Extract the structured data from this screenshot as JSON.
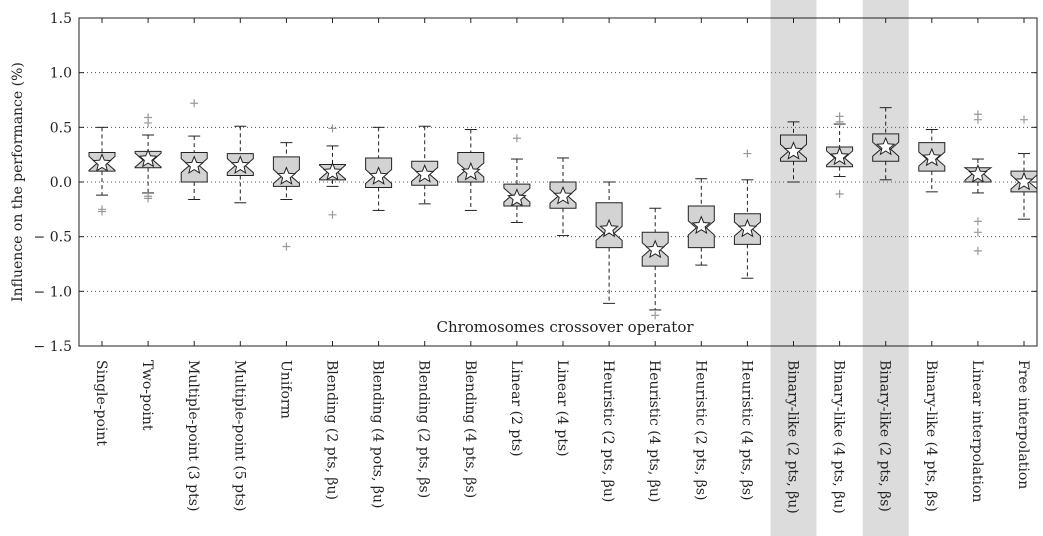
{
  "chart_data": {
    "type": "boxplot",
    "title": "",
    "ylabel": "Influence on the performance (%)",
    "annotation": "Chromosomes crossover operator",
    "ylim": [
      -1.5,
      1.5
    ],
    "yticks": [
      1.5,
      1.0,
      0.5,
      0.0,
      -0.5,
      -1.0,
      -1.5
    ],
    "ytick_labels": [
      "1.5",
      "1.0",
      "0.5",
      "0.0",
      "− 0.5",
      "− 1.0",
      "− 1.5"
    ],
    "grid": "dotted horizontal at ±0.5 and ±1.0",
    "highlighted_categories": [
      "Binary-like (2 pts, βu)",
      "Binary-like (2 pts, βs)"
    ],
    "colors": {
      "box": "#d3d3d3",
      "highlight": "#dcdcdc",
      "outlier": "#999999",
      "line": "#222222"
    },
    "categories": [
      "Single-point",
      "Two-point",
      "Multiple-point (3 pts)",
      "Multiple-point (5 pts)",
      "Uniform",
      "Blending (2 pts, βu)",
      "Blending (4 pots, βu)",
      "Blending (2 pts, βs)",
      "Blending (4 pts, βs)",
      "Linear (2 pts)",
      "Linear (4 pts)",
      "Heuristic (2 pts, βu)",
      "Heuristic (4 pts, βu)",
      "Heuristic (2 pts, βs)",
      "Heuristic (4 pts, βs)",
      "Binary-like (2 pts, βu)",
      "Binary-like (4 pts, βu)",
      "Binary-like (2 pts, βs)",
      "Binary-like (4 pts, βs)",
      "Linear interpolation",
      "Free interpolation"
    ],
    "boxes": [
      {
        "whisker_low": -0.12,
        "q1": 0.1,
        "median": 0.17,
        "q3": 0.27,
        "whisker_high": 0.5,
        "mean": 0.17,
        "outliers": [
          -0.25,
          -0.27
        ]
      },
      {
        "whisker_low": -0.1,
        "q1": 0.13,
        "median": 0.2,
        "q3": 0.28,
        "whisker_high": 0.43,
        "mean": 0.21,
        "outliers": [
          0.59,
          0.54,
          -0.13,
          -0.15
        ]
      },
      {
        "whisker_low": -0.16,
        "q1": 0.0,
        "median": 0.15,
        "q3": 0.27,
        "whisker_high": 0.42,
        "mean": 0.15,
        "outliers": [
          0.72
        ]
      },
      {
        "whisker_low": -0.19,
        "q1": 0.06,
        "median": 0.15,
        "q3": 0.26,
        "whisker_high": 0.51,
        "mean": 0.15,
        "outliers": []
      },
      {
        "whisker_low": -0.16,
        "q1": -0.04,
        "median": 0.05,
        "q3": 0.23,
        "whisker_high": 0.36,
        "mean": 0.05,
        "outliers": [
          -0.59
        ]
      },
      {
        "whisker_low": -0.04,
        "q1": 0.02,
        "median": 0.09,
        "q3": 0.16,
        "whisker_high": 0.33,
        "mean": 0.09,
        "outliers": [
          0.49,
          -0.3
        ]
      },
      {
        "whisker_low": -0.26,
        "q1": -0.05,
        "median": 0.05,
        "q3": 0.22,
        "whisker_high": 0.5,
        "mean": 0.05,
        "outliers": []
      },
      {
        "whisker_low": -0.2,
        "q1": -0.03,
        "median": 0.07,
        "q3": 0.19,
        "whisker_high": 0.51,
        "mean": 0.07,
        "outliers": []
      },
      {
        "whisker_low": -0.26,
        "q1": 0.0,
        "median": 0.11,
        "q3": 0.27,
        "whisker_high": 0.48,
        "mean": 0.09,
        "outliers": []
      },
      {
        "whisker_low": -0.37,
        "q1": -0.22,
        "median": -0.12,
        "q3": -0.02,
        "whisker_high": 0.21,
        "mean": -0.15,
        "outliers": [
          0.4
        ]
      },
      {
        "whisker_low": -0.49,
        "q1": -0.24,
        "median": -0.13,
        "q3": 0.0,
        "whisker_high": 0.22,
        "mean": -0.13,
        "outliers": []
      },
      {
        "whisker_low": -1.11,
        "q1": -0.6,
        "median": -0.47,
        "q3": -0.19,
        "whisker_high": 0.0,
        "mean": -0.43,
        "outliers": []
      },
      {
        "whisker_low": -1.17,
        "q1": -0.77,
        "median": -0.62,
        "q3": -0.46,
        "whisker_high": -0.24,
        "mean": -0.62,
        "outliers": [
          -1.22
        ]
      },
      {
        "whisker_low": -0.76,
        "q1": -0.6,
        "median": -0.42,
        "q3": -0.22,
        "whisker_high": 0.03,
        "mean": -0.4,
        "outliers": []
      },
      {
        "whisker_low": -0.88,
        "q1": -0.57,
        "median": -0.43,
        "q3": -0.29,
        "whisker_high": 0.02,
        "mean": -0.43,
        "outliers": [
          0.26
        ]
      },
      {
        "whisker_low": 0.0,
        "q1": 0.19,
        "median": 0.28,
        "q3": 0.43,
        "whisker_high": 0.55,
        "mean": 0.28,
        "outliers": []
      },
      {
        "whisker_low": 0.05,
        "q1": 0.14,
        "median": 0.22,
        "q3": 0.32,
        "whisker_high": 0.53,
        "mean": 0.23,
        "outliers": [
          0.6,
          0.55,
          -0.11
        ]
      },
      {
        "whisker_low": 0.02,
        "q1": 0.19,
        "median": 0.3,
        "q3": 0.44,
        "whisker_high": 0.68,
        "mean": 0.32,
        "outliers": []
      },
      {
        "whisker_low": -0.09,
        "q1": 0.1,
        "median": 0.21,
        "q3": 0.36,
        "whisker_high": 0.48,
        "mean": 0.22,
        "outliers": []
      },
      {
        "whisker_low": -0.1,
        "q1": 0.0,
        "median": 0.08,
        "q3": 0.13,
        "whisker_high": 0.21,
        "mean": 0.07,
        "outliers": [
          0.62,
          0.57,
          -0.36,
          -0.46,
          -0.63
        ]
      },
      {
        "whisker_low": -0.34,
        "q1": -0.09,
        "median": 0.0,
        "q3": 0.1,
        "whisker_high": 0.26,
        "mean": 0.0,
        "outliers": [
          0.57
        ]
      }
    ]
  }
}
